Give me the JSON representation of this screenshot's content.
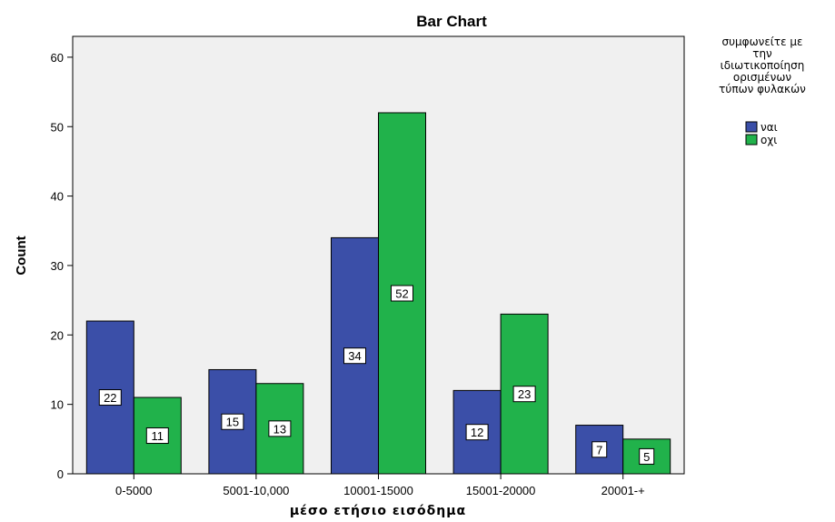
{
  "chart_data": {
    "type": "bar",
    "title": "Bar Chart",
    "xlabel": "μέσο ετήσιο εισόδημα",
    "ylabel": "Count",
    "categories": [
      "0-5000",
      "5001-10,000",
      "10001-15000",
      "15001-20000",
      "20001-+"
    ],
    "series": [
      {
        "name": "ναι",
        "color": "#3b4fa8",
        "values": [
          22,
          15,
          34,
          12,
          7
        ]
      },
      {
        "name": "οχι",
        "color": "#21b24b",
        "values": [
          11,
          13,
          52,
          23,
          5
        ]
      }
    ],
    "ylim": [
      0,
      63
    ],
    "yticks": [
      0,
      10,
      20,
      30,
      40,
      50,
      60
    ],
    "legend": {
      "title_lines": [
        "συμφωνείτε με",
        "την",
        "ιδιωτικοποίηση",
        "ορισμένων",
        "τύπων φυλακών"
      ],
      "placement": "top-right"
    },
    "grid": false,
    "plot_background": "#f0f0f0"
  }
}
